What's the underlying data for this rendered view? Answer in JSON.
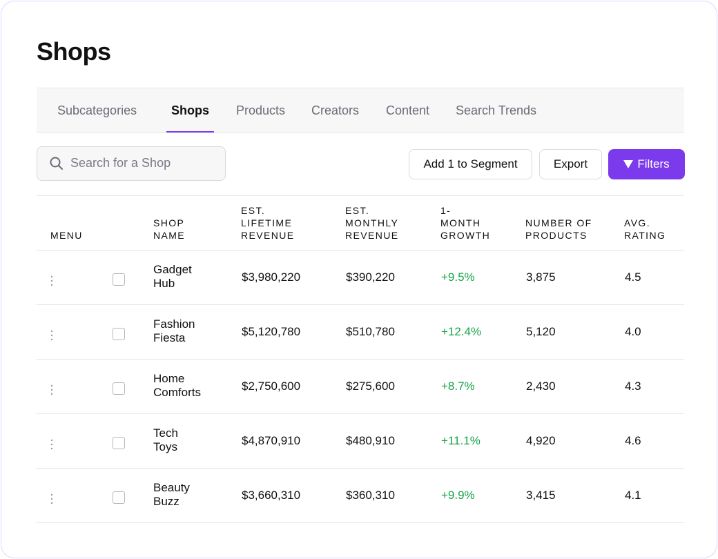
{
  "header": {
    "title": "Shops"
  },
  "tabs": {
    "items": [
      "Subcategories",
      "Shops",
      "Products",
      "Creators",
      "Content",
      "Search Trends"
    ],
    "active": 1
  },
  "toolbar": {
    "search_placeholder": "Search for a Shop",
    "buttons": [
      "Add 1 to Segment",
      "Export",
      "Filters"
    ]
  },
  "table": {
    "columns": [
      "MENU",
      "SHOP NAME",
      "EST. LIFETIME REVENUE",
      "EST. MONTHLY REVENUE",
      "1-MONTH GROWTH",
      "NUMBER OF PRODUCTS",
      "AVG. RATING"
    ],
    "rows": [
      [
        "Gadget Hub",
        "$3,980,220",
        "$390,220",
        "+9.5%",
        "3,875",
        "4.5"
      ],
      [
        "Fashion Fiesta",
        "$5,120,780",
        "$510,780",
        "+12.4%",
        "5,120",
        "4.0"
      ],
      [
        "Home Comforts",
        "$2,750,600",
        "$275,600",
        "+8.7%",
        "2,430",
        "4.3"
      ],
      [
        "Tech Toys",
        "$4,870,910",
        "$480,910",
        "+11.1%",
        "4,920",
        "4.6"
      ],
      [
        "Beauty Buzz",
        "$3,660,310",
        "$360,310",
        "+9.9%",
        "3,415",
        "4.1"
      ]
    ]
  }
}
